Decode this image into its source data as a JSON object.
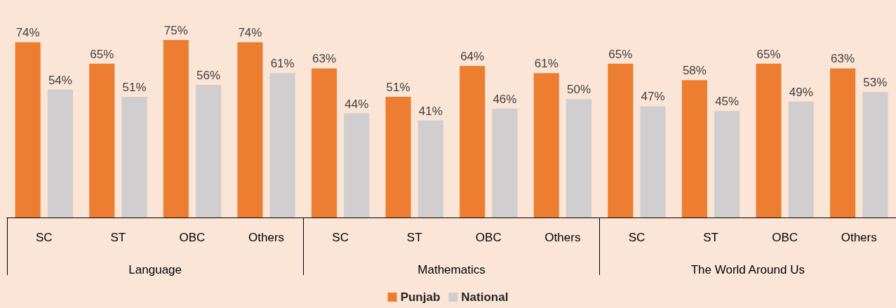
{
  "chart_data": {
    "type": "bar",
    "categories": [
      "SC",
      "ST",
      "OBC",
      "Others",
      "SC",
      "ST",
      "OBC",
      "Others",
      "SC",
      "ST",
      "OBC",
      "Others"
    ],
    "annotations": [
      "Language",
      "Mathematics",
      "The World Around Us"
    ],
    "series": [
      {
        "name": "Punjab",
        "color": "#ed7d31",
        "values": [
          74,
          65,
          75,
          74,
          63,
          51,
          64,
          61,
          65,
          58,
          65,
          63
        ],
        "value_labels": [
          "74%",
          "65%",
          "75%",
          "74%",
          "63%",
          "51%",
          "64%",
          "61%",
          "65%",
          "58%",
          "65%",
          "63%"
        ]
      },
      {
        "name": "National",
        "color": "#d0cece",
        "values": [
          54,
          51,
          56,
          61,
          44,
          41,
          46,
          50,
          47,
          45,
          49,
          53
        ],
        "value_labels": [
          "54%",
          "51%",
          "56%",
          "61%",
          "44%",
          "41%",
          "46%",
          "50%",
          "47%",
          "45%",
          "49%",
          "53%"
        ]
      }
    ],
    "legend": "bottom"
  }
}
